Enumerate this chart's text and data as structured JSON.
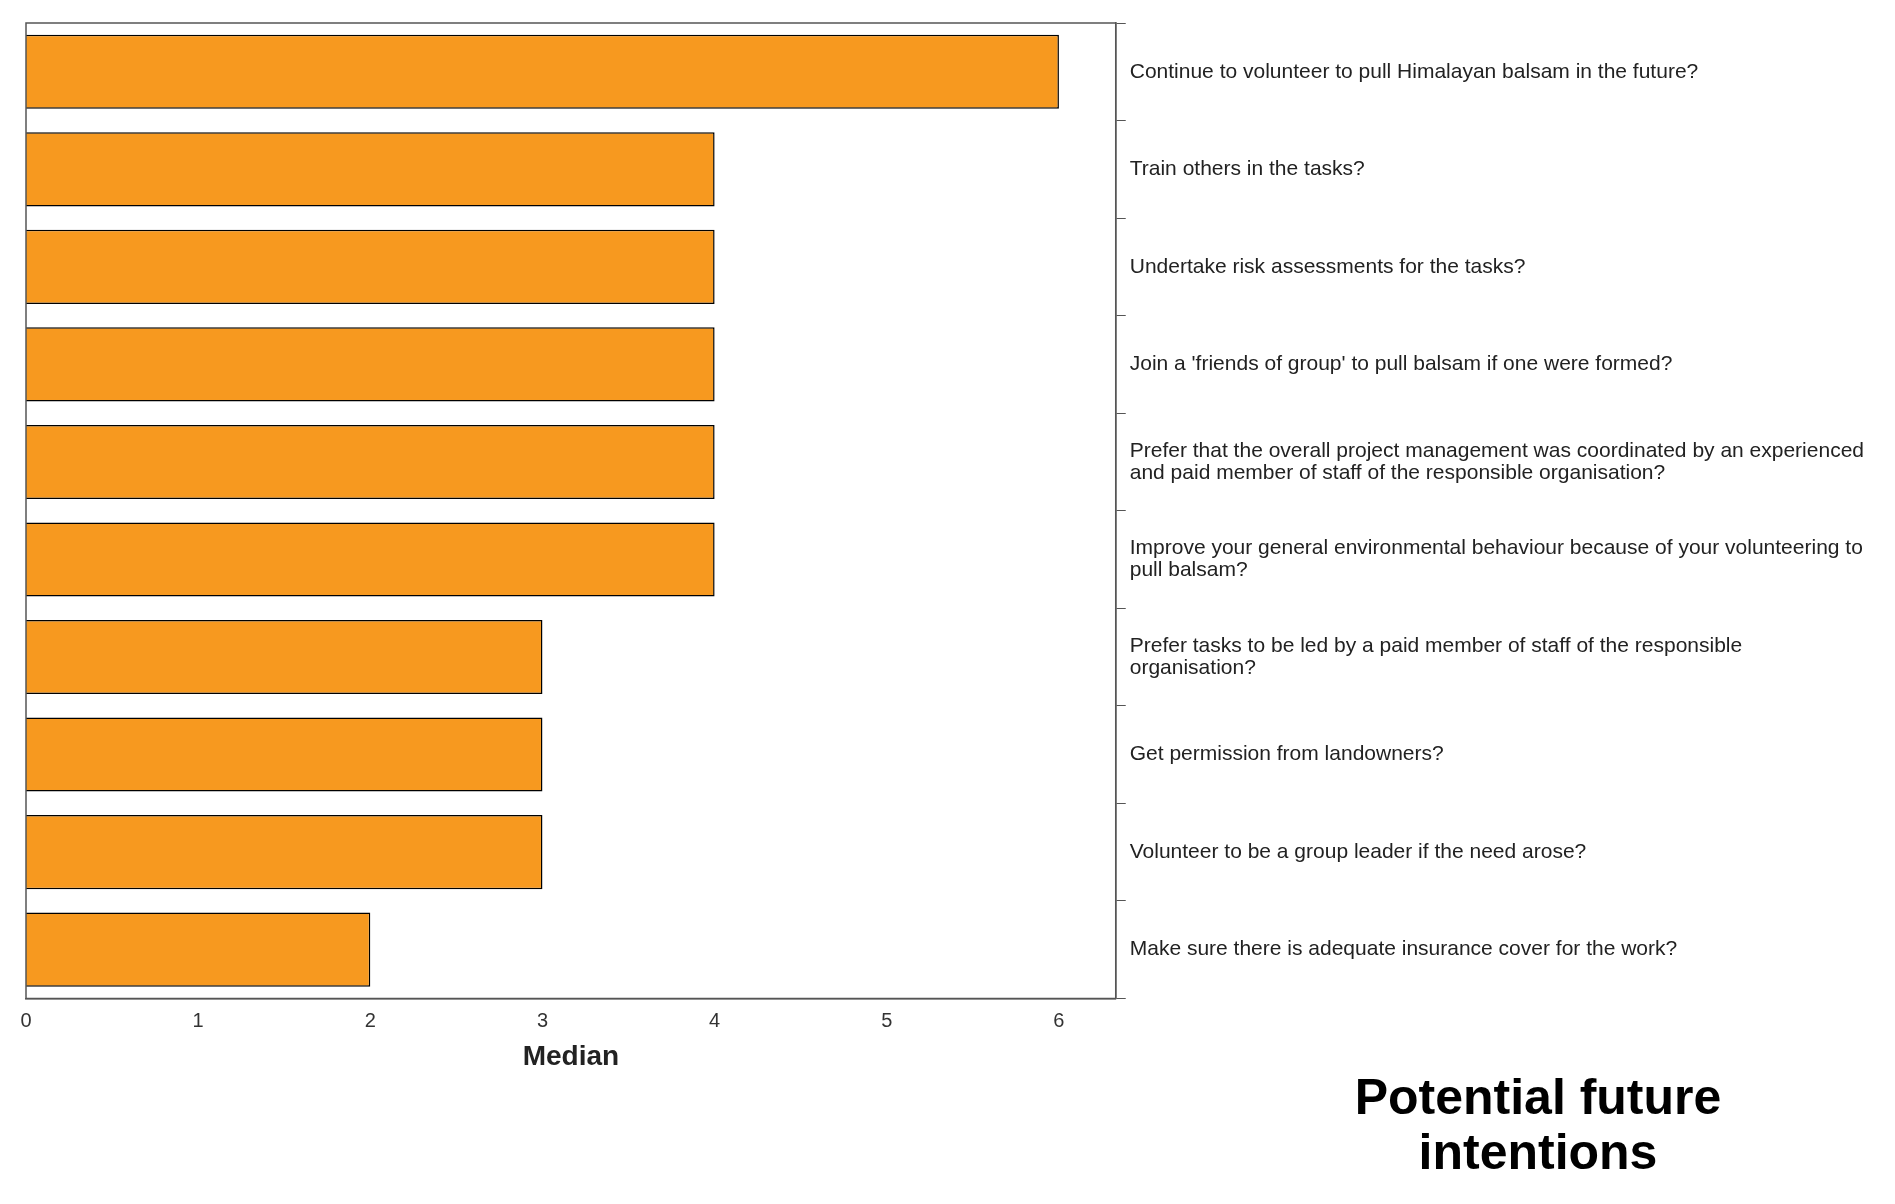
{
  "chart_data": {
    "type": "bar",
    "orientation": "horizontal",
    "title": "Potential future intentions",
    "xlabel": "Median",
    "categories": [
      "Continue to volunteer to pull Himalayan balsam in the future?",
      "Train others in the tasks?",
      "Undertake risk assessments for the tasks?",
      "Join a 'friends of group' to pull balsam if one were formed?",
      "Prefer that the overall project management was coordinated by an experienced and paid member of staff of the responsible organisation?",
      "Improve your general environmental behaviour because of your volunteering to pull balsam?",
      "Prefer tasks to be led by a paid member of staff of the responsible organisation?",
      "Get permission from landowners?",
      "Volunteer to be a group leader if the need arose?",
      "Make sure there is adequate insurance cover for the work?"
    ],
    "values": [
      6,
      4,
      4,
      4,
      4,
      4,
      3,
      3,
      3,
      2
    ],
    "color": "#f7991f",
    "xlim": [
      0,
      6.33
    ],
    "xticks": [
      0,
      1,
      2,
      3,
      4,
      5,
      6
    ],
    "grid": false,
    "legend": false
  }
}
